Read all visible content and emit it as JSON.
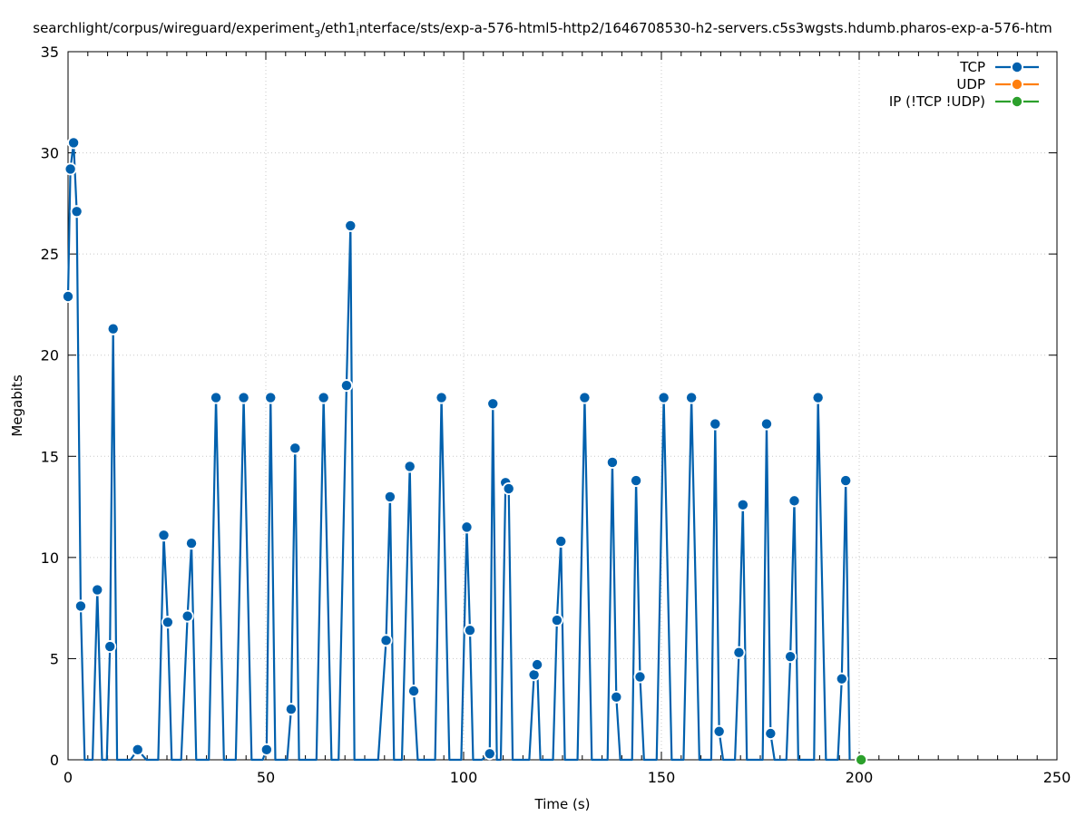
{
  "chart_data": {
    "type": "line",
    "title_parts": [
      "searchlight/corpus/wireguard/experiment",
      "3",
      "/eth1",
      "i",
      "nterface/sts/exp-a-576-html5-http2/1646708530-h2-servers.c5s3wgsts.hdumb.pharos-exp-a-576-htm"
    ],
    "xlabel": "Time (s)",
    "ylabel": "Megabits",
    "xlim": [
      0,
      250
    ],
    "ylim": [
      0,
      35
    ],
    "x_ticks": [
      0,
      50,
      100,
      150,
      200,
      250
    ],
    "y_ticks": [
      0,
      5,
      10,
      15,
      20,
      25,
      30,
      35
    ],
    "grid": true,
    "legend_position": "top-right",
    "series": [
      {
        "name": "TCP",
        "color": "#0060ad",
        "x": [
          0,
          0.6,
          1.4,
          2.2,
          3.2,
          4.2,
          6.2,
          7.4,
          8.6,
          9.8,
          10.6,
          11.4,
          12.4,
          13.6,
          15.8,
          17.6,
          19.8,
          22.8,
          24.2,
          25.2,
          26.2,
          28.6,
          30.2,
          31.2,
          32.4,
          35.6,
          37.4,
          39.4,
          42.4,
          44.4,
          46.4,
          49.2,
          50.2,
          51.2,
          52.4,
          55.4,
          56.4,
          57.4,
          58.4,
          62.8,
          64.6,
          66.6,
          68.4,
          70.4,
          71.4,
          72.4,
          74.4,
          78.4,
          80.4,
          81.4,
          82.4,
          84.4,
          86.4,
          87.4,
          88.4,
          92.8,
          94.4,
          96.4,
          99.4,
          100.8,
          101.6,
          102.4,
          104.6,
          106.6,
          107.4,
          108.4,
          109.4,
          110.6,
          111.4,
          112.4,
          116.6,
          117.8,
          118.6,
          119.4,
          122.6,
          123.6,
          124.6,
          125.6,
          128.8,
          130.6,
          132.4,
          136.4,
          137.6,
          138.6,
          139.6,
          142.6,
          143.6,
          144.6,
          145.6,
          148.8,
          150.6,
          152.6,
          155.6,
          157.6,
          159.6,
          162.6,
          163.6,
          164.6,
          165.6,
          168.6,
          169.6,
          170.6,
          171.6,
          175.6,
          176.6,
          177.6,
          178.6,
          181.6,
          182.6,
          183.6,
          184.6,
          188.6,
          189.6,
          191.6,
          194.6,
          195.6,
          196.6,
          197.6
        ],
        "y": [
          22.9,
          29.2,
          30.5,
          27.1,
          7.6,
          0,
          0,
          8.4,
          0,
          0,
          5.6,
          21.3,
          0,
          0,
          0,
          0.5,
          0,
          0,
          11.1,
          6.8,
          0,
          0,
          7.1,
          10.7,
          0,
          0,
          17.9,
          0,
          0,
          17.9,
          0,
          0,
          0.5,
          17.9,
          0,
          0,
          2.5,
          15.4,
          0,
          0,
          17.9,
          0,
          0,
          18.5,
          26.4,
          0,
          0,
          0,
          5.9,
          13.0,
          0,
          0,
          14.5,
          3.4,
          0,
          0,
          17.9,
          0,
          0,
          11.5,
          6.4,
          0,
          0,
          0.3,
          17.6,
          0,
          0,
          13.7,
          13.4,
          0,
          0,
          4.2,
          4.7,
          0,
          0,
          6.9,
          10.8,
          0,
          0,
          17.9,
          0,
          0,
          14.7,
          3.1,
          0,
          0,
          13.8,
          4.1,
          0,
          0,
          17.9,
          0,
          0,
          17.9,
          0,
          0,
          16.6,
          1.4,
          0,
          0,
          5.3,
          12.6,
          0,
          0,
          16.6,
          1.3,
          0,
          0,
          5.1,
          12.8,
          0,
          0,
          17.9,
          0,
          0,
          4.0,
          13.8,
          0
        ],
        "markers": [
          [
            0,
            22.9
          ],
          [
            0.6,
            29.2
          ],
          [
            1.4,
            30.5
          ],
          [
            2.2,
            27.1
          ],
          [
            3.2,
            7.6
          ],
          [
            7.4,
            8.4
          ],
          [
            10.6,
            5.6
          ],
          [
            11.4,
            21.3
          ],
          [
            17.6,
            0.5
          ],
          [
            24.2,
            11.1
          ],
          [
            25.2,
            6.8
          ],
          [
            30.2,
            7.1
          ],
          [
            31.2,
            10.7
          ],
          [
            37.4,
            17.9
          ],
          [
            44.4,
            17.9
          ],
          [
            50.2,
            0.5
          ],
          [
            51.2,
            17.9
          ],
          [
            56.4,
            2.5
          ],
          [
            57.4,
            15.4
          ],
          [
            64.6,
            17.9
          ],
          [
            70.4,
            18.5
          ],
          [
            71.4,
            26.4
          ],
          [
            80.4,
            5.9
          ],
          [
            81.4,
            13.0
          ],
          [
            86.4,
            14.5
          ],
          [
            87.4,
            3.4
          ],
          [
            94.4,
            17.9
          ],
          [
            100.8,
            11.5
          ],
          [
            101.6,
            6.4
          ],
          [
            106.6,
            0.3
          ],
          [
            107.4,
            17.6
          ],
          [
            110.6,
            13.7
          ],
          [
            111.4,
            13.4
          ],
          [
            117.8,
            4.2
          ],
          [
            118.6,
            4.7
          ],
          [
            123.6,
            6.9
          ],
          [
            124.6,
            10.8
          ],
          [
            130.6,
            17.9
          ],
          [
            137.6,
            14.7
          ],
          [
            138.6,
            3.1
          ],
          [
            143.6,
            13.8
          ],
          [
            144.6,
            4.1
          ],
          [
            150.6,
            17.9
          ],
          [
            157.6,
            17.9
          ],
          [
            163.6,
            16.6
          ],
          [
            164.6,
            1.4
          ],
          [
            169.6,
            5.3
          ],
          [
            170.6,
            12.6
          ],
          [
            176.6,
            16.6
          ],
          [
            177.6,
            1.3
          ],
          [
            182.6,
            5.1
          ],
          [
            183.6,
            12.8
          ],
          [
            189.6,
            17.9
          ],
          [
            195.6,
            4.0
          ],
          [
            196.6,
            13.8
          ]
        ]
      },
      {
        "name": "UDP",
        "color": "#ff7f0e",
        "x": [],
        "y": [],
        "markers": []
      },
      {
        "name": "IP (!TCP  !UDP)",
        "color": "#2ca02c",
        "x": [
          200.5
        ],
        "y": [
          0
        ],
        "markers": [
          [
            200.5,
            0
          ]
        ]
      }
    ]
  }
}
